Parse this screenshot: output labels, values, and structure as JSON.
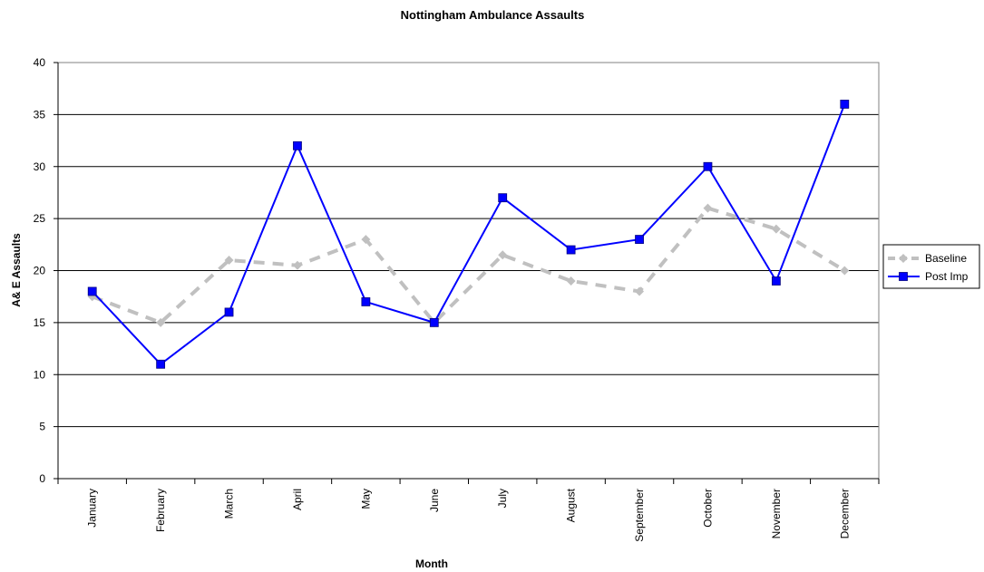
{
  "chart_data": {
    "type": "line",
    "title": "Nottingham Ambulance Assaults",
    "xlabel": "Month",
    "ylabel": "A& E Assaults",
    "categories": [
      "January",
      "February",
      "March",
      "April",
      "May",
      "June",
      "July",
      "August",
      "September",
      "October",
      "November",
      "December"
    ],
    "ylim": [
      0,
      40
    ],
    "yticks": [
      0,
      5,
      10,
      15,
      20,
      25,
      30,
      35,
      40
    ],
    "grid": true,
    "legend_position": "right",
    "series": [
      {
        "name": "Baseline",
        "values": [
          17.5,
          15,
          21,
          20.5,
          23,
          15,
          21.5,
          19,
          18,
          26,
          24,
          20
        ],
        "color": "#c0c0c0",
        "style": "dashed",
        "marker": "diamond"
      },
      {
        "name": "Post Imp",
        "values": [
          18,
          11,
          16,
          32,
          17,
          15,
          27,
          22,
          23,
          30,
          19,
          36
        ],
        "color": "#0000ff",
        "style": "solid",
        "marker": "square"
      }
    ]
  }
}
